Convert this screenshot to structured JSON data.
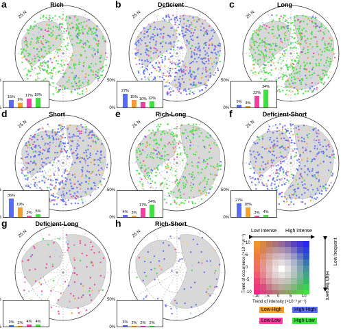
{
  "hemisphere": {
    "lat_label": "25 N"
  },
  "y_axis": {
    "tick_top": "50%",
    "tick_bottom": "0%"
  },
  "class_colors": {
    "High-High": "#5a6cf0",
    "Low-High": "#f0a030",
    "Low-Low": "#f040a0",
    "High-Low": "#40e040"
  },
  "panels": [
    {
      "letter": "a",
      "title": "Rich",
      "bar_labels": [
        "15%",
        "9%",
        "17%",
        "19%"
      ],
      "values": [
        15,
        9,
        17,
        19
      ]
    },
    {
      "letter": "b",
      "title": "Deficient",
      "bar_labels": [
        "27%",
        "15%",
        "10%",
        "12%"
      ],
      "values": [
        27,
        15,
        10,
        12
      ]
    },
    {
      "letter": "c",
      "title": "Long",
      "bar_labels": [
        "5%",
        "3%",
        "22%",
        "34%"
      ],
      "values": [
        5,
        3,
        22,
        34
      ]
    },
    {
      "letter": "d",
      "title": "Short",
      "bar_labels": [
        "36%",
        "19%",
        "3%",
        "5%"
      ],
      "values": [
        36,
        19,
        3,
        5
      ]
    },
    {
      "letter": "e",
      "title": "Rich-Long",
      "bar_labels": [
        "4%",
        "3%",
        "17%",
        "24%"
      ],
      "values": [
        4,
        3,
        17,
        24
      ]
    },
    {
      "letter": "f",
      "title": "Deficient-Short",
      "bar_labels": [
        "27%",
        "18%",
        "3%",
        "4%"
      ],
      "values": [
        27,
        18,
        3,
        4
      ]
    },
    {
      "letter": "g",
      "title": "Deficient-Long",
      "bar_labels": [
        "3%",
        "2%",
        "4%",
        "4%"
      ],
      "values": [
        3,
        2,
        4,
        4
      ]
    },
    {
      "letter": "h",
      "title": "Rich-Short",
      "bar_labels": [
        "3%",
        "2%",
        "2%",
        "2%"
      ],
      "values": [
        3,
        2,
        2,
        2
      ]
    }
  ],
  "legend": {
    "low_intense": "Low intense",
    "high_intense": "High intense",
    "high_frequent": "High frequent",
    "low_frequent": "Low frequent",
    "y_label": "Trend of occurrence (×10⁻³ yr⁻¹)",
    "x_label": "Trend of intensity (×10⁻³ yr⁻¹)",
    "y_ticks": [
      "10",
      "5",
      "0",
      "-5",
      "-10"
    ],
    "x_ticks": [
      "−10",
      "−5",
      "0",
      "5",
      "10"
    ],
    "chips": [
      "Low-High",
      "High-High",
      "Low-Low",
      "High-Low"
    ]
  }
}
